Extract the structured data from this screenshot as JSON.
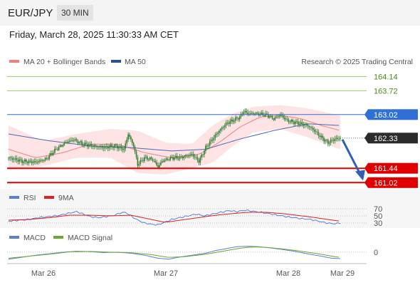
{
  "header": {
    "symbol": "EUR/JPY",
    "timeframe": "30 MIN"
  },
  "datetime": "Friday, March 28, 2025 11:30:33 AM CET",
  "legend": {
    "ma_bb": "MA 20 + Bollinger Bands",
    "ma50": "MA 50",
    "credit": "Research © 2025 Trading Central"
  },
  "colors": {
    "candle": "#2e7d32",
    "bb_fill": "#fde0e0",
    "ma20": "#f08080",
    "ma50": "#4a69bd",
    "support": "#e00000",
    "resistance_green": "#9ccc65",
    "resistance_blue": "#2f6fd6",
    "rsi": "#5b7fd6",
    "rsi_ma": "#e02020",
    "macd": "#5b7fd6",
    "macd_signal": "#6aaa2a",
    "arrow": "#2f5fb5",
    "current": "#2b2b2b"
  },
  "chart_data": [
    {
      "type": "candlestick",
      "title": "EUR/JPY",
      "timeframe": "30 MIN",
      "x_ticks": [
        "Mar 26",
        "Mar 27",
        "Mar 28",
        "Mar 29"
      ],
      "ylim": [
        160.9,
        164.4
      ],
      "current_price": "162.33",
      "levels": [
        {
          "value": "164.14",
          "kind": "resistance",
          "color": "#9ccc65",
          "badge": false
        },
        {
          "value": "163.72",
          "kind": "resistance",
          "color": "#9ccc65",
          "badge": false
        },
        {
          "value": "163.02",
          "kind": "pivot",
          "color": "#2f6fd6",
          "badge": true
        },
        {
          "value": "161.44",
          "kind": "support",
          "color": "#e00000",
          "badge": true
        },
        {
          "value": "161.02",
          "kind": "support",
          "color": "#e00000",
          "badge": true
        }
      ],
      "forecast": {
        "direction": "down",
        "from": 162.33,
        "to": 161.1
      },
      "anchors": [
        [
          0,
          161.75
        ],
        [
          10,
          161.65
        ],
        [
          20,
          161.62
        ],
        [
          28,
          161.72
        ],
        [
          35,
          162.0
        ],
        [
          42,
          162.2
        ],
        [
          48,
          162.28
        ],
        [
          55,
          162.15
        ],
        [
          62,
          162.1
        ],
        [
          70,
          162.05
        ],
        [
          78,
          162.1
        ],
        [
          85,
          162.0
        ],
        [
          88,
          162.45
        ],
        [
          92,
          162.1
        ],
        [
          95,
          161.55
        ],
        [
          100,
          161.75
        ],
        [
          106,
          161.7
        ],
        [
          110,
          161.48
        ],
        [
          113,
          161.65
        ],
        [
          120,
          161.75
        ],
        [
          126,
          161.75
        ],
        [
          130,
          161.8
        ],
        [
          135,
          161.85
        ],
        [
          140,
          161.65
        ],
        [
          145,
          162.05
        ],
        [
          150,
          162.3
        ],
        [
          155,
          162.55
        ],
        [
          160,
          162.75
        ],
        [
          165,
          162.85
        ],
        [
          170,
          162.95
        ],
        [
          173,
          163.12
        ],
        [
          176,
          163.05
        ],
        [
          182,
          163.05
        ],
        [
          190,
          163.0
        ],
        [
          195,
          162.9
        ],
        [
          200,
          163.0
        ],
        [
          205,
          162.85
        ],
        [
          210,
          162.8
        ],
        [
          215,
          162.75
        ],
        [
          220,
          162.7
        ],
        [
          225,
          162.55
        ],
        [
          230,
          162.35
        ],
        [
          235,
          162.2
        ],
        [
          240,
          162.3
        ],
        [
          244,
          162.33
        ]
      ],
      "ma50": [
        [
          0,
          162.45
        ],
        [
          30,
          162.25
        ],
        [
          60,
          162.1
        ],
        [
          90,
          162.05
        ],
        [
          120,
          161.95
        ],
        [
          145,
          162.0
        ],
        [
          170,
          162.3
        ],
        [
          195,
          162.55
        ],
        [
          220,
          162.75
        ],
        [
          244,
          162.7
        ]
      ],
      "ma20": [
        [
          0,
          162.0
        ],
        [
          20,
          161.75
        ],
        [
          40,
          161.9
        ],
        [
          60,
          162.15
        ],
        [
          80,
          162.15
        ],
        [
          100,
          161.9
        ],
        [
          120,
          161.75
        ],
        [
          140,
          161.85
        ],
        [
          155,
          162.2
        ],
        [
          170,
          162.65
        ],
        [
          185,
          162.95
        ],
        [
          200,
          163.0
        ],
        [
          215,
          162.9
        ],
        [
          230,
          162.7
        ],
        [
          244,
          162.55
        ]
      ],
      "bb_upper": [
        [
          0,
          162.7
        ],
        [
          25,
          162.25
        ],
        [
          50,
          162.45
        ],
        [
          75,
          162.6
        ],
        [
          95,
          162.55
        ],
        [
          115,
          162.2
        ],
        [
          135,
          162.15
        ],
        [
          150,
          162.7
        ],
        [
          165,
          163.05
        ],
        [
          180,
          163.25
        ],
        [
          200,
          163.3
        ],
        [
          220,
          163.2
        ],
        [
          244,
          163.0
        ]
      ],
      "bb_lower": [
        [
          0,
          161.4
        ],
        [
          25,
          161.5
        ],
        [
          50,
          161.75
        ],
        [
          75,
          161.75
        ],
        [
          95,
          161.3
        ],
        [
          115,
          161.25
        ],
        [
          135,
          161.45
        ],
        [
          150,
          161.6
        ],
        [
          165,
          162.1
        ],
        [
          180,
          162.5
        ],
        [
          200,
          162.6
        ],
        [
          220,
          162.35
        ],
        [
          244,
          162.0
        ]
      ]
    },
    {
      "type": "line",
      "title": "RSI",
      "series": [
        {
          "name": "RSI"
        },
        {
          "name": "9MA"
        }
      ],
      "y_ticks": [
        "70",
        "50",
        "30"
      ],
      "ylim": [
        20,
        80
      ],
      "rsi": [
        [
          0,
          35
        ],
        [
          8,
          38
        ],
        [
          15,
          40
        ],
        [
          22,
          45
        ],
        [
          30,
          48
        ],
        [
          38,
          52
        ],
        [
          45,
          58
        ],
        [
          50,
          62
        ],
        [
          55,
          55
        ],
        [
          60,
          48
        ],
        [
          66,
          45
        ],
        [
          72,
          48
        ],
        [
          78,
          52
        ],
        [
          82,
          58
        ],
        [
          86,
          60
        ],
        [
          90,
          50
        ],
        [
          95,
          38
        ],
        [
          100,
          30
        ],
        [
          106,
          26
        ],
        [
          110,
          25
        ],
        [
          115,
          32
        ],
        [
          120,
          40
        ],
        [
          126,
          45
        ],
        [
          132,
          50
        ],
        [
          138,
          55
        ],
        [
          144,
          50
        ],
        [
          150,
          55
        ],
        [
          156,
          60
        ],
        [
          162,
          65
        ],
        [
          168,
          62
        ],
        [
          174,
          66
        ],
        [
          180,
          63
        ],
        [
          186,
          60
        ],
        [
          192,
          56
        ],
        [
          198,
          52
        ],
        [
          204,
          48
        ],
        [
          210,
          45
        ],
        [
          216,
          42
        ],
        [
          222,
          40
        ],
        [
          228,
          35
        ],
        [
          234,
          30
        ],
        [
          240,
          28
        ],
        [
          244,
          30
        ]
      ],
      "rsi_ma": [
        [
          0,
          38
        ],
        [
          15,
          40
        ],
        [
          30,
          45
        ],
        [
          45,
          52
        ],
        [
          60,
          52
        ],
        [
          75,
          50
        ],
        [
          90,
          52
        ],
        [
          105,
          40
        ],
        [
          115,
          32
        ],
        [
          130,
          40
        ],
        [
          145,
          48
        ],
        [
          160,
          55
        ],
        [
          175,
          60
        ],
        [
          190,
          60
        ],
        [
          205,
          55
        ],
        [
          220,
          48
        ],
        [
          235,
          40
        ],
        [
          244,
          35
        ]
      ]
    },
    {
      "type": "line",
      "title": "MACD",
      "series": [
        {
          "name": "MACD"
        },
        {
          "name": "MACD Signal"
        }
      ],
      "y_ticks": [
        "0"
      ],
      "ylim": [
        -0.5,
        0.5
      ],
      "macd": [
        [
          0,
          -0.35
        ],
        [
          10,
          -0.25
        ],
        [
          20,
          -0.15
        ],
        [
          30,
          -0.08
        ],
        [
          40,
          0.0
        ],
        [
          50,
          0.05
        ],
        [
          60,
          0.03
        ],
        [
          70,
          -0.02
        ],
        [
          80,
          0.0
        ],
        [
          90,
          -0.05
        ],
        [
          100,
          -0.15
        ],
        [
          110,
          -0.3
        ],
        [
          118,
          -0.35
        ],
        [
          125,
          -0.25
        ],
        [
          135,
          -0.15
        ],
        [
          145,
          -0.05
        ],
        [
          152,
          0.08
        ],
        [
          160,
          0.18
        ],
        [
          168,
          0.28
        ],
        [
          176,
          0.3
        ],
        [
          184,
          0.28
        ],
        [
          192,
          0.22
        ],
        [
          200,
          0.15
        ],
        [
          210,
          0.05
        ],
        [
          220,
          -0.08
        ],
        [
          230,
          -0.2
        ],
        [
          238,
          -0.3
        ],
        [
          244,
          -0.32
        ]
      ],
      "signal": [
        [
          0,
          -0.3
        ],
        [
          15,
          -0.2
        ],
        [
          30,
          -0.1
        ],
        [
          45,
          0.02
        ],
        [
          60,
          0.04
        ],
        [
          75,
          0.0
        ],
        [
          90,
          -0.02
        ],
        [
          105,
          -0.12
        ],
        [
          118,
          -0.26
        ],
        [
          130,
          -0.22
        ],
        [
          145,
          -0.1
        ],
        [
          160,
          0.08
        ],
        [
          172,
          0.22
        ],
        [
          182,
          0.27
        ],
        [
          194,
          0.22
        ],
        [
          210,
          0.1
        ],
        [
          225,
          -0.05
        ],
        [
          238,
          -0.2
        ],
        [
          244,
          -0.26
        ]
      ]
    }
  ]
}
